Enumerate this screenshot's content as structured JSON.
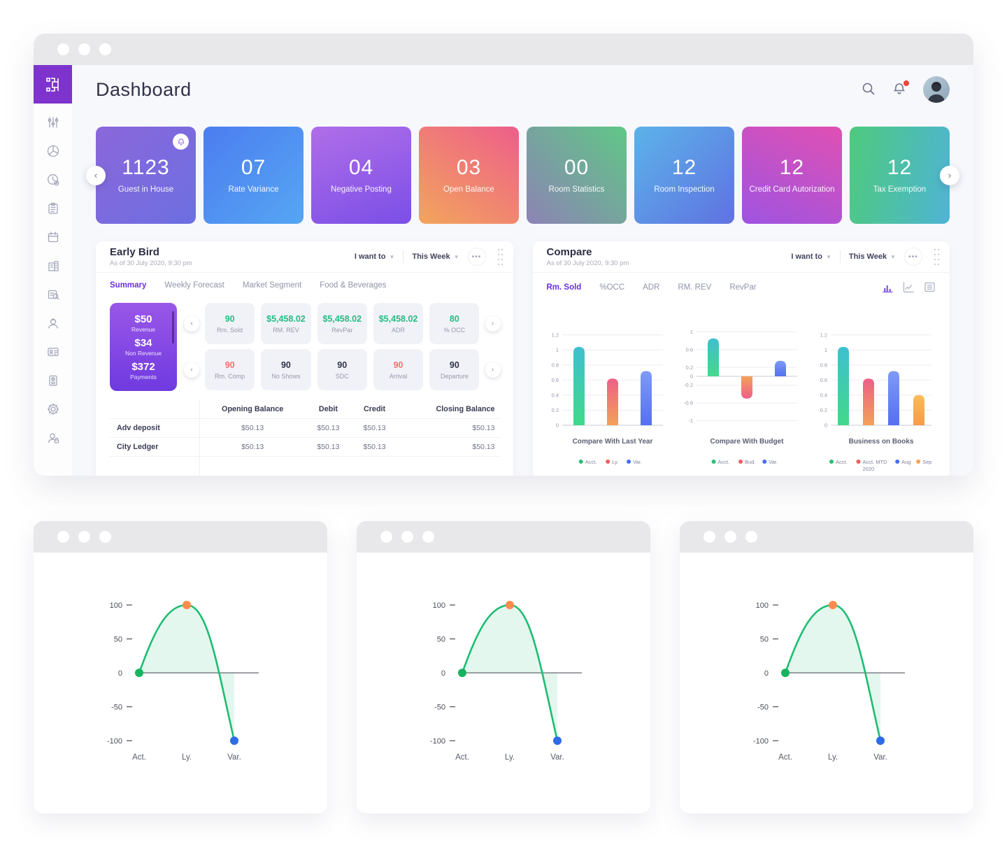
{
  "header": {
    "title": "Dashboard",
    "icons": [
      "search-icon",
      "bell-icon",
      "avatar"
    ]
  },
  "sidebar": {
    "items": [
      "sliders",
      "pie-chart",
      "clock-check",
      "clipboard-list",
      "calendar",
      "buildings-report",
      "document-search",
      "worker",
      "id-card",
      "invoice",
      "settings",
      "user-lock"
    ]
  },
  "stat_cards": [
    {
      "value": "1123",
      "label": "Guest in House",
      "gradient": "linear-gradient(135deg,#8b67da,#6c6fe2)",
      "has_bell": true
    },
    {
      "value": "07",
      "label": "Rate Variance",
      "gradient": "linear-gradient(135deg,#4c7df0,#55a6f3)"
    },
    {
      "value": "04",
      "label": "Negative Posting",
      "gradient": "linear-gradient(160deg,#b06ee8,#7b4fe7)"
    },
    {
      "value": "03",
      "label": "Open Balance",
      "gradient": "linear-gradient(35deg,#f2a55c,#ee5e8a)"
    },
    {
      "value": "00",
      "label": "Room Statistics",
      "gradient": "linear-gradient(225deg,#5fc786,#8d83b5)"
    },
    {
      "value": "12",
      "label": "Room Inspection",
      "gradient": "linear-gradient(135deg,#5cb3e9,#5f72e1)"
    },
    {
      "value": "12",
      "label": "Credit Card Autorization",
      "gradient": "linear-gradient(205deg,#e050b3,#9e54e1)"
    },
    {
      "value": "12",
      "label": "Tax Exemption",
      "gradient": "linear-gradient(100deg,#4eca7d,#4fb4d5)"
    }
  ],
  "early_bird": {
    "title": "Early Bird",
    "subtitle": "As of 30 July 2020, 9:30 pm",
    "controls": {
      "i_want_to": "I want to",
      "period": "This Week",
      "more": "•••"
    },
    "tabs": [
      "Summary",
      "Weekly Forecast",
      "Market Segment",
      "Food & Beverages"
    ],
    "active_tab": "Summary",
    "revenue_card": [
      {
        "value": "$50",
        "label": "Revenue"
      },
      {
        "value": "$34",
        "label": "Non Revenue"
      },
      {
        "value": "$372",
        "label": "Payments"
      }
    ],
    "revenue_card_gradient": "linear-gradient(180deg,#9a57e8,#6f3ae0)",
    "kpi_rows": [
      [
        {
          "value": "90",
          "label": "Rm. Sold",
          "color": "green"
        },
        {
          "value": "$5,458.02",
          "label": "RM. REV",
          "color": "green"
        },
        {
          "value": "$5,458.02",
          "label": "RevPar",
          "color": "green"
        },
        {
          "value": "$5,458.02",
          "label": "ADR",
          "color": "green"
        },
        {
          "value": "80",
          "label": "% OCC",
          "color": "green"
        }
      ],
      [
        {
          "value": "90",
          "label": "Rm. Comp",
          "color": "red"
        },
        {
          "value": "90",
          "label": "No Shows",
          "color": "dark"
        },
        {
          "value": "90",
          "label": "SDC",
          "color": "dark"
        },
        {
          "value": "90",
          "label": "Arrival",
          "color": "red"
        },
        {
          "value": "90",
          "label": "Departure",
          "color": "dark"
        }
      ]
    ],
    "table": {
      "headers": [
        "",
        "Opening Balance",
        "Debit",
        "Credit",
        "Closing Balance"
      ],
      "rows": [
        [
          "Adv deposit",
          "$50.13",
          "$50.13",
          "$50.13",
          "$50.13"
        ],
        [
          "City Ledger",
          "$50.13",
          "$50.13",
          "$50.13",
          "$50.13"
        ]
      ]
    }
  },
  "compare": {
    "title": "Compare",
    "subtitle": "As of 30 July 2020, 9:30 pm",
    "controls": {
      "i_want_to": "I want to",
      "period": "This Week",
      "more": "•••"
    },
    "tabs": [
      "Rm. Sold",
      "%OCC",
      "ADR",
      "RM. REV",
      "RevPar"
    ],
    "active_tab": "Rm. Sold",
    "toolbar_icons": [
      "bar-chart-icon",
      "line-chart-icon",
      "table-view-icon"
    ],
    "accent_color": "#6a2fe0"
  },
  "chart_data": [
    {
      "type": "bar",
      "title": "Compare With Last Year",
      "categories": [
        "Acct.",
        "Ly.",
        "Var."
      ],
      "values": [
        1.04,
        0.62,
        0.72
      ],
      "yticks": [
        1.2,
        1,
        0.8,
        0.6,
        0.4,
        0.2,
        0
      ],
      "ylim": [
        0,
        1.3
      ],
      "bar_gradients": [
        [
          "#3fbfd0",
          "#42d98a"
        ],
        [
          "#ee6088",
          "#f2a159"
        ],
        [
          "#7e9bf6",
          "#5570ef"
        ]
      ],
      "legend": [
        {
          "label": "Acct.",
          "color": "#2ebd77"
        },
        {
          "label": "Ly.",
          "color": "#ed5e5e"
        },
        {
          "label": "Var.",
          "color": "#4a6cf7"
        }
      ]
    },
    {
      "type": "bar",
      "title": "Compare With Budget",
      "categories": [
        "Acct.",
        "Bud.",
        "Var."
      ],
      "values": [
        0.85,
        -0.5,
        0.35
      ],
      "yticks": [
        1,
        0.6,
        0.2,
        0,
        -0.2,
        -0.6,
        -1
      ],
      "ylim": [
        -1.1,
        1.1
      ],
      "bar_gradients": [
        [
          "#3fbfd0",
          "#42d98a"
        ],
        [
          "#f2a159",
          "#ee6088"
        ],
        [
          "#7e9bf6",
          "#5570ef"
        ]
      ],
      "legend": [
        {
          "label": "Acct.",
          "color": "#2ebd77"
        },
        {
          "label": "Bud.",
          "color": "#ed5e5e"
        },
        {
          "label": "Var.",
          "color": "#4a6cf7"
        }
      ]
    },
    {
      "type": "bar",
      "title": "Business on Books",
      "categories": [
        "Acct.",
        "Acct. MTD",
        "Aug",
        "Sep"
      ],
      "values": [
        1.04,
        0.62,
        0.72,
        0.4
      ],
      "yticks": [
        1.2,
        1,
        0.8,
        0.6,
        0.4,
        0.2,
        0
      ],
      "ylim": [
        0,
        1.3
      ],
      "bar_gradients": [
        [
          "#3fbfd0",
          "#42d98a"
        ],
        [
          "#ee6088",
          "#f2a159"
        ],
        [
          "#7e9bf6",
          "#5570ef"
        ],
        [
          "#f9bd57",
          "#f59b4a"
        ]
      ],
      "legend": [
        {
          "label": "Acct.",
          "color": "#2ebd77"
        },
        {
          "label": "Acct. MTD",
          "color": "#ed5e5e",
          "sub": "2020"
        },
        {
          "label": "Aug",
          "color": "#4a6cf7"
        },
        {
          "label": "Sep",
          "color": "#f5a54a"
        }
      ]
    },
    {
      "type": "line",
      "title": "",
      "x": [
        "Act.",
        "Ly.",
        "Var."
      ],
      "values": [
        0,
        100,
        -100
      ],
      "yticks": [
        100,
        50,
        0,
        -50,
        -100
      ],
      "ylim": [
        -100,
        100
      ],
      "line_color": "#1dbd72",
      "fill_color": "#1dbd72",
      "fill_opacity": 0.12,
      "point_colors": [
        "#16b45f",
        "#fb8c4e",
        "#2e6be6"
      ]
    }
  ]
}
